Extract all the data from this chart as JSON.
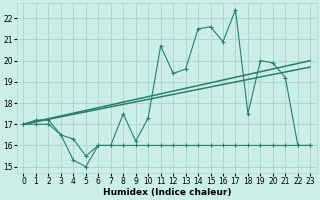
{
  "title": "",
  "xlabel": "Humidex (Indice chaleur)",
  "x": [
    0,
    1,
    2,
    3,
    4,
    5,
    6,
    7,
    8,
    9,
    10,
    11,
    12,
    13,
    14,
    15,
    16,
    17,
    18,
    19,
    20,
    21,
    22,
    23
  ],
  "line1_y": [
    17.0,
    17.2,
    17.2,
    16.5,
    15.3,
    15.0,
    16.0,
    16.0,
    17.5,
    16.2,
    17.3,
    20.7,
    19.4,
    19.6,
    21.5,
    21.6,
    20.9,
    22.4,
    17.5,
    20.0,
    19.9,
    19.2,
    16.0,
    16.0
  ],
  "line2_y": [
    17.0,
    17.0,
    17.0,
    16.5,
    16.3,
    15.5,
    16.0,
    16.0,
    16.0,
    16.0,
    16.0,
    16.0,
    16.0,
    16.0,
    16.0,
    16.0,
    16.0,
    16.0,
    16.0,
    16.0,
    16.0,
    16.0,
    16.0,
    16.0
  ],
  "trend1_x": [
    0,
    23
  ],
  "trend1_y": [
    17.0,
    20.0
  ],
  "trend2_x": [
    0,
    23
  ],
  "trend2_y": [
    17.0,
    19.7
  ],
  "color": "#2a7d6f",
  "bg_color": "#cceee8",
  "grid_color": "#aad4cc",
  "ylim": [
    14.7,
    22.7
  ],
  "xlim": [
    -0.5,
    23.5
  ],
  "yticks": [
    15,
    16,
    17,
    18,
    19,
    20,
    21,
    22
  ],
  "xticks": [
    0,
    1,
    2,
    3,
    4,
    5,
    6,
    7,
    8,
    9,
    10,
    11,
    12,
    13,
    14,
    15,
    16,
    17,
    18,
    19,
    20,
    21,
    22,
    23
  ],
  "tick_fontsize": 5.5,
  "label_fontsize": 6.5
}
